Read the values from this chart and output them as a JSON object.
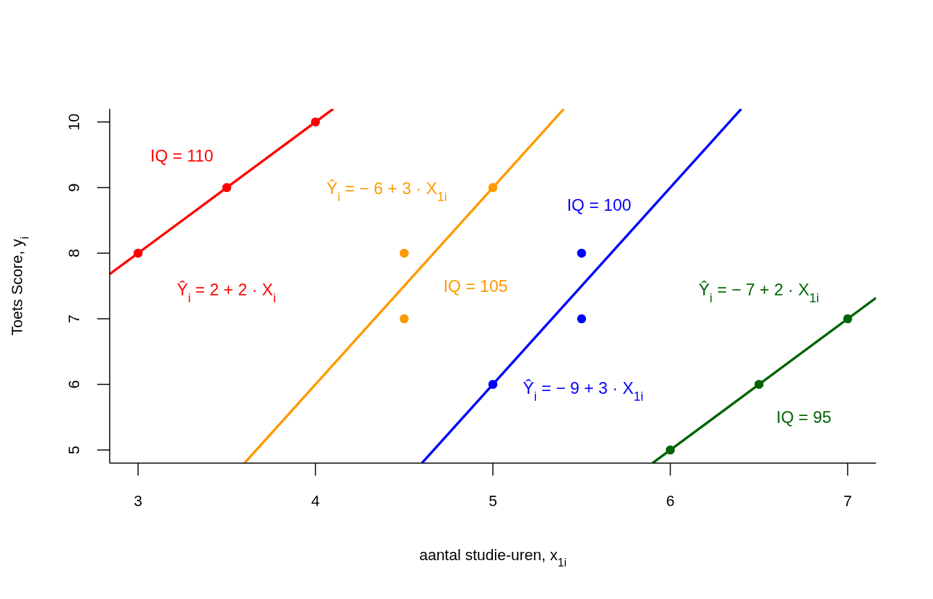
{
  "chart_data": {
    "type": "scatter",
    "xlabel": "aantal studie-uren, x$_{1i}$",
    "ylabel": "Toets Score, y$_{i}$",
    "xlim": [
      2.84,
      7.16
    ],
    "ylim": [
      4.8,
      10.2
    ],
    "xticks": [
      3,
      4,
      5,
      6,
      7
    ],
    "yticks": [
      5,
      6,
      7,
      8,
      9,
      10
    ],
    "grid": false,
    "line_style": "solid",
    "series": [
      {
        "color": "#ff0000",
        "marker": "circle",
        "x": [
          3,
          3.5,
          4
        ],
        "values": [
          8,
          9,
          10
        ]
      },
      {
        "color": "#ff9900",
        "marker": "circle",
        "x": [
          4.5,
          4.5,
          5
        ],
        "values": [
          8,
          7,
          9
        ]
      },
      {
        "color": "#0000ff",
        "marker": "circle",
        "x": [
          5,
          5.5,
          5.5
        ],
        "values": [
          6,
          8,
          7
        ]
      },
      {
        "color": "#006400",
        "marker": "circle",
        "x": [
          6,
          6.5,
          7
        ],
        "values": [
          5,
          6,
          7
        ]
      },
      {
        "type": "line",
        "color": "#ff0000",
        "marker": "none",
        "x": [
          2.84,
          4.1
        ],
        "values": [
          7.68,
          10.2
        ]
      },
      {
        "type": "line",
        "color": "#ff9900",
        "marker": "none",
        "x": [
          3.6,
          5.4
        ],
        "values": [
          4.8,
          10.2
        ]
      },
      {
        "type": "line",
        "color": "#0000ff",
        "marker": "none",
        "x": [
          4.6,
          6.4
        ],
        "values": [
          4.8,
          10.2
        ]
      },
      {
        "type": "line",
        "color": "#006400",
        "marker": "none",
        "x": [
          5.9,
          7.16
        ],
        "values": [
          4.8,
          7.32
        ]
      }
    ],
    "annotations": [
      "IQ = 110",
      "Ŷ$_{i}$ = 2 + 2 · X$_{i}$",
      "Ŷ$_{i}$ =  − 6 + 3 · X$_{1i}$",
      "IQ = 105",
      "IQ = 100",
      "Ŷ$_{i}$ =  − 9 + 3 · X$_{1i}$",
      "Ŷ$_{i}$ =  − 7 + 2 · X$_{1i}$",
      "IQ = 95"
    ]
  }
}
